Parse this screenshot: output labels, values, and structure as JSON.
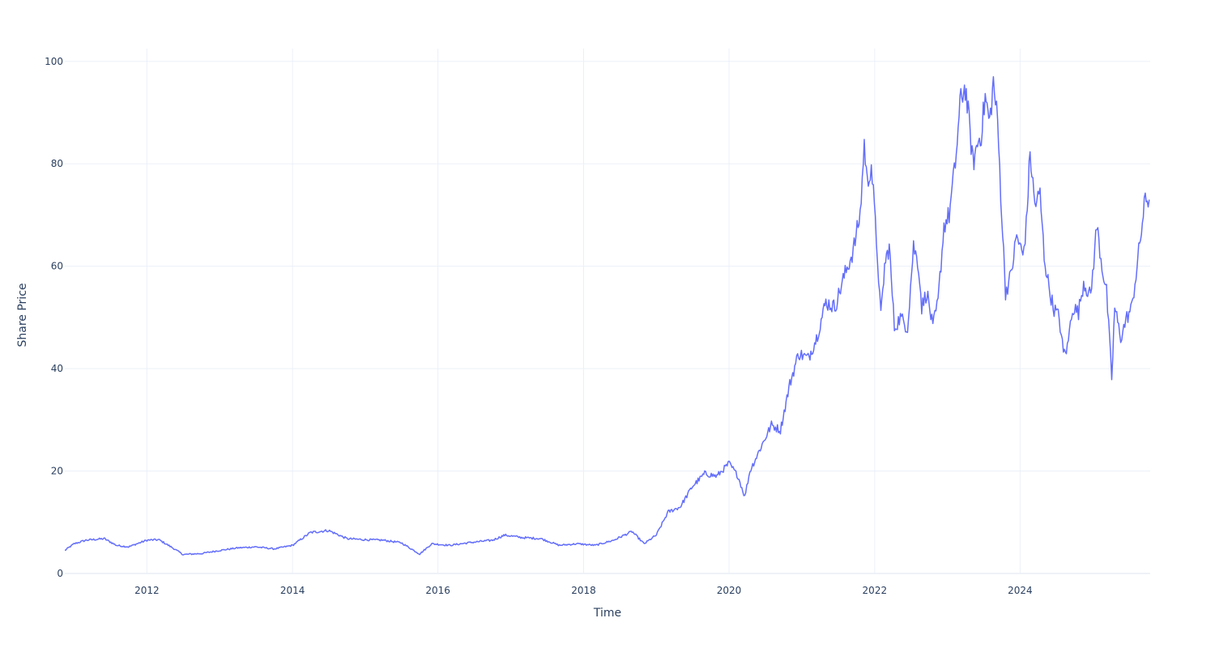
{
  "colors": {
    "series": "#636efa",
    "grid": "#ebf0f8",
    "text": "#2a3f5f",
    "background": "#ffffff"
  },
  "chart_data": {
    "type": "line",
    "title": "",
    "xlabel": "Time",
    "ylabel": "Share Price",
    "xlim": [
      "2010-11-15",
      "2025-10-15"
    ],
    "ylim": [
      0,
      102.5
    ],
    "grid": true,
    "legend": "none",
    "x_ticks": [
      "2012",
      "2014",
      "2016",
      "2018",
      "2020",
      "2022",
      "2024"
    ],
    "y_ticks": [
      0,
      20,
      40,
      60,
      80,
      100
    ],
    "series": [
      {
        "x": [
          "2010-11-15",
          "2011-01-01",
          "2011-03-01",
          "2011-06-01",
          "2011-08-01",
          "2011-10-01",
          "2012-01-01",
          "2012-03-01",
          "2012-05-01",
          "2012-07-01",
          "2012-10-01",
          "2013-01-01",
          "2013-04-01",
          "2013-07-01",
          "2013-10-01",
          "2014-01-01",
          "2014-04-01",
          "2014-07-01",
          "2014-10-01",
          "2015-01-01",
          "2015-04-01",
          "2015-07-01",
          "2015-10-01",
          "2015-12-01",
          "2016-03-01",
          "2016-06-01",
          "2016-10-01",
          "2016-12-01",
          "2017-03-01",
          "2017-06-01",
          "2017-09-01",
          "2017-12-01",
          "2018-03-01",
          "2018-06-01",
          "2018-09-01",
          "2018-11-01",
          "2019-01-01",
          "2019-03-01",
          "2019-05-01",
          "2019-07-01",
          "2019-09-01",
          "2019-11-01",
          "2020-01-01",
          "2020-02-15",
          "2020-03-20",
          "2020-04-15",
          "2020-06-01",
          "2020-08-01",
          "2020-09-15",
          "2020-11-01",
          "2020-12-15",
          "2021-02-01",
          "2021-03-15",
          "2021-05-01",
          "2021-06-15",
          "2021-08-01",
          "2021-09-15",
          "2021-10-20",
          "2021-11-10",
          "2021-11-25",
          "2021-12-15",
          "2022-01-15",
          "2022-02-01",
          "2022-02-20",
          "2022-03-15",
          "2022-04-10",
          "2022-05-10",
          "2022-06-15",
          "2022-07-15",
          "2022-08-10",
          "2022-08-25",
          "2022-09-20",
          "2022-10-20",
          "2022-11-15",
          "2022-12-15",
          "2023-01-10",
          "2023-02-10",
          "2023-03-10",
          "2023-04-01",
          "2023-04-20",
          "2023-05-10",
          "2023-06-01",
          "2023-06-20",
          "2023-07-10",
          "2023-08-01",
          "2023-08-20",
          "2023-09-10",
          "2023-10-01",
          "2023-10-20",
          "2023-11-15",
          "2023-12-15",
          "2024-01-15",
          "2024-02-01",
          "2024-02-20",
          "2024-03-15",
          "2024-04-10",
          "2024-05-01",
          "2024-05-20",
          "2024-06-15",
          "2024-07-15",
          "2024-08-05",
          "2024-08-25",
          "2024-09-20",
          "2024-10-20",
          "2024-11-15",
          "2024-12-20",
          "2025-01-20",
          "2025-02-15",
          "2025-03-10",
          "2025-04-05",
          "2025-04-20",
          "2025-05-20",
          "2025-06-20",
          "2025-07-15",
          "2025-08-10",
          "2025-09-01",
          "2025-09-20",
          "2025-10-10"
        ],
        "y": [
          4.5,
          5.8,
          6.5,
          6.8,
          5.5,
          5.2,
          6.5,
          6.6,
          5.2,
          3.7,
          3.9,
          4.5,
          5.0,
          5.2,
          4.8,
          5.5,
          8.0,
          8.4,
          6.8,
          6.6,
          6.5,
          6.0,
          3.8,
          5.8,
          5.5,
          6.0,
          6.5,
          7.5,
          7.0,
          6.8,
          5.5,
          5.8,
          5.5,
          6.5,
          8.2,
          5.8,
          7.5,
          12.0,
          13.0,
          17.0,
          19.5,
          19.0,
          21.5,
          19.0,
          15.0,
          20.0,
          24.0,
          29.0,
          28.0,
          37.0,
          43.0,
          42.0,
          46.0,
          53.0,
          52.0,
          58.0,
          63.0,
          70.0,
          84.0,
          76.0,
          80.0,
          62.0,
          50.0,
          60.0,
          64.0,
          48.0,
          50.0,
          48.0,
          64.0,
          60.0,
          52.0,
          55.0,
          48.0,
          53.0,
          68.0,
          70.0,
          80.0,
          93.0,
          95.0,
          88.0,
          80.0,
          84.0,
          86.0,
          93.0,
          88.0,
          96.0,
          88.0,
          70.0,
          55.0,
          58.0,
          66.0,
          62.0,
          68.0,
          82.0,
          72.0,
          74.0,
          62.0,
          57.0,
          52.0,
          50.0,
          43.0,
          44.0,
          52.0,
          51.0,
          57.0,
          54.0,
          68.0,
          60.0,
          55.0,
          38.0,
          52.0,
          46.0,
          50.0,
          52.0,
          60.0,
          67.0,
          73.0,
          73.0
        ]
      }
    ]
  }
}
